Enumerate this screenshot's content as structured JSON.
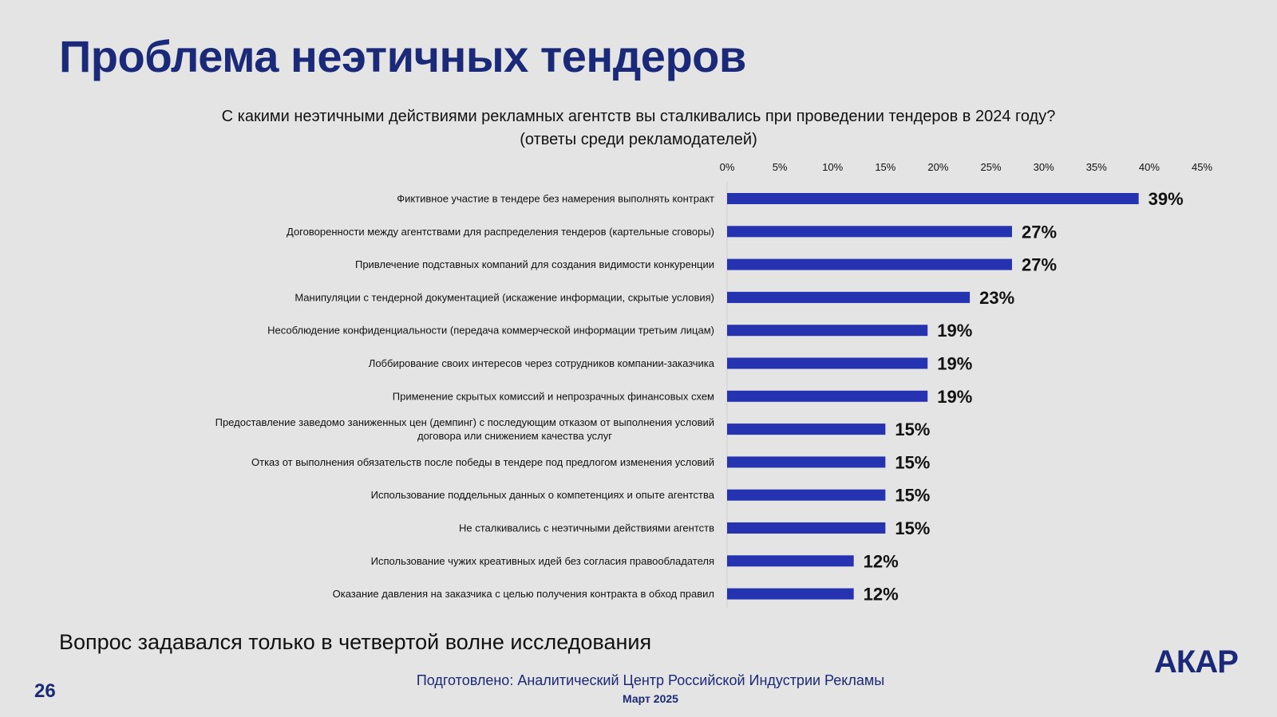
{
  "slide": {
    "title": "Проблема неэтичных тендеров",
    "question_line1": "С какими неэтичными действиями рекламных агентств вы сталкивались при проведении тендеров в 2024 году?",
    "question_line2": "(ответы среди рекламодателей)",
    "footnote": "Вопрос задавался только в четвертой волне исследования",
    "credit": "Подготовлено: Аналитический Центр Российской Индустрии Рекламы",
    "date": "Март 2025",
    "page_number": "26",
    "logo": "АКАР"
  },
  "chart_data": {
    "type": "bar",
    "orientation": "horizontal",
    "title": "С какими неэтичными действиями рекламных агентств вы сталкивались при проведении тендеров в 2024 году? (ответы среди рекламодателей)",
    "xlim": [
      0,
      45
    ],
    "x_ticks": [
      "0%",
      "5%",
      "10%",
      "15%",
      "20%",
      "25%",
      "30%",
      "35%",
      "40%",
      "45%"
    ],
    "x_tick_values": [
      0,
      5,
      10,
      15,
      20,
      25,
      30,
      35,
      40,
      45
    ],
    "x_axis_position": "top",
    "grid": false,
    "bar_color": "#2633b0",
    "categories": [
      [
        "Фиктивное участие в тендере без намерения выполнять контракт"
      ],
      [
        "Договоренности между агентствами для распределения тендеров (картельные сговоры)"
      ],
      [
        "Привлечение подставных компаний для создания видимости конкуренции"
      ],
      [
        "Манипуляции с тендерной документацией (искажение информации, скрытые условия)"
      ],
      [
        "Несоблюдение конфиденциальности (передача коммерческой информации третьим лицам)"
      ],
      [
        "Лоббирование своих интересов через сотрудников компании-заказчика"
      ],
      [
        "Применение скрытых комиссий и непрозрачных финансовых схем"
      ],
      [
        "Предоставление заведомо заниженных цен (демпинг) с последующим отказом от выполнения условий",
        "договора или снижением качества услуг"
      ],
      [
        "Отказ от выполнения обязательств после победы в тендере под предлогом изменения условий"
      ],
      [
        "Использование поддельных данных о компетенциях и опыте агентства"
      ],
      [
        "Не сталкивались с неэтичными действиями агентств"
      ],
      [
        "Использование чужих креативных идей без согласия правообладателя"
      ],
      [
        "Оказание давления на заказчика с целью получения контракта в обход правил"
      ]
    ],
    "values": [
      39,
      27,
      27,
      23,
      19,
      19,
      19,
      15,
      15,
      15,
      15,
      12,
      12
    ],
    "value_labels": [
      "39%",
      "27%",
      "27%",
      "23%",
      "19%",
      "19%",
      "19%",
      "15%",
      "15%",
      "15%",
      "15%",
      "12%",
      "12%"
    ]
  }
}
